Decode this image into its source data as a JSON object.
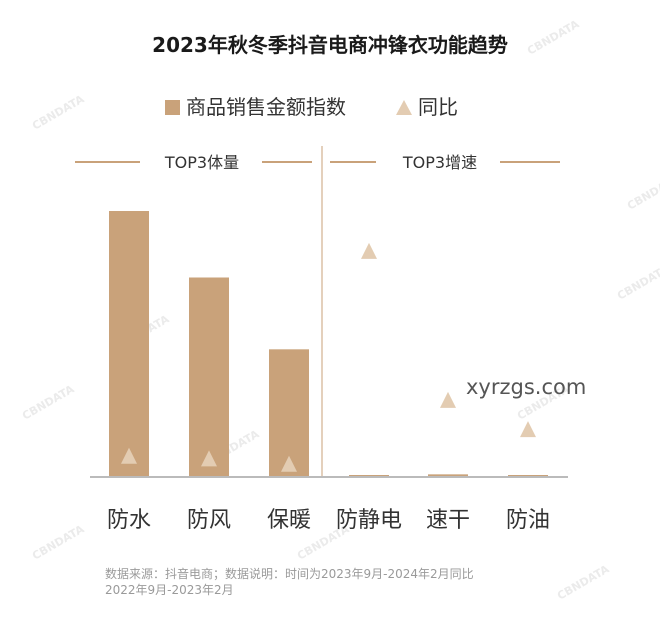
{
  "chart_data": {
    "type": "bar",
    "title": "2023年秋冬季抖音电商冲锋衣功能趋势",
    "legend": [
      {
        "label": "商品销售金额指数",
        "marker": "bar",
        "color": "#c9a27a"
      },
      {
        "label": "同比",
        "marker": "triangle",
        "color": "#e3ccb2"
      }
    ],
    "legend_position": "top",
    "groups": [
      {
        "label": "TOP3体量",
        "categories": [
          "防水",
          "防风",
          "保暖"
        ]
      },
      {
        "label": "TOP3增速",
        "categories": [
          "防静电",
          "速干",
          "防油"
        ]
      }
    ],
    "categories": [
      "防水",
      "防风",
      "保暖",
      "防静电",
      "速干",
      "防油"
    ],
    "series": [
      {
        "name": "商品销售金额指数",
        "type": "bar",
        "values": [
          100,
          75,
          48,
          0.5,
          1,
          0.6
        ]
      },
      {
        "name": "同比",
        "type": "scatter",
        "marker": "triangle",
        "values": [
          8,
          7,
          5,
          85,
          29,
          18
        ]
      }
    ],
    "ylim": [
      0,
      100
    ],
    "y_axis_visible": false,
    "grid": false,
    "source_note": "数据来源：抖音电商；数据说明：时间为2023年9月-2024年2月同比2022年9月-2023年2月",
    "watermark": "CBNDATA",
    "overlay_text": "xyrzgs.com",
    "colors": {
      "bar": "#c9a27a",
      "triangle": "#e3ccb2",
      "title": "#1a1a1a",
      "text": "#333333",
      "axis": "#bbbbbb",
      "divider": "#c9a27a",
      "group_line": "#c9a27a",
      "note": "#9a9a9a",
      "overlay": "#555555",
      "watermark": "#ebebeb"
    }
  }
}
